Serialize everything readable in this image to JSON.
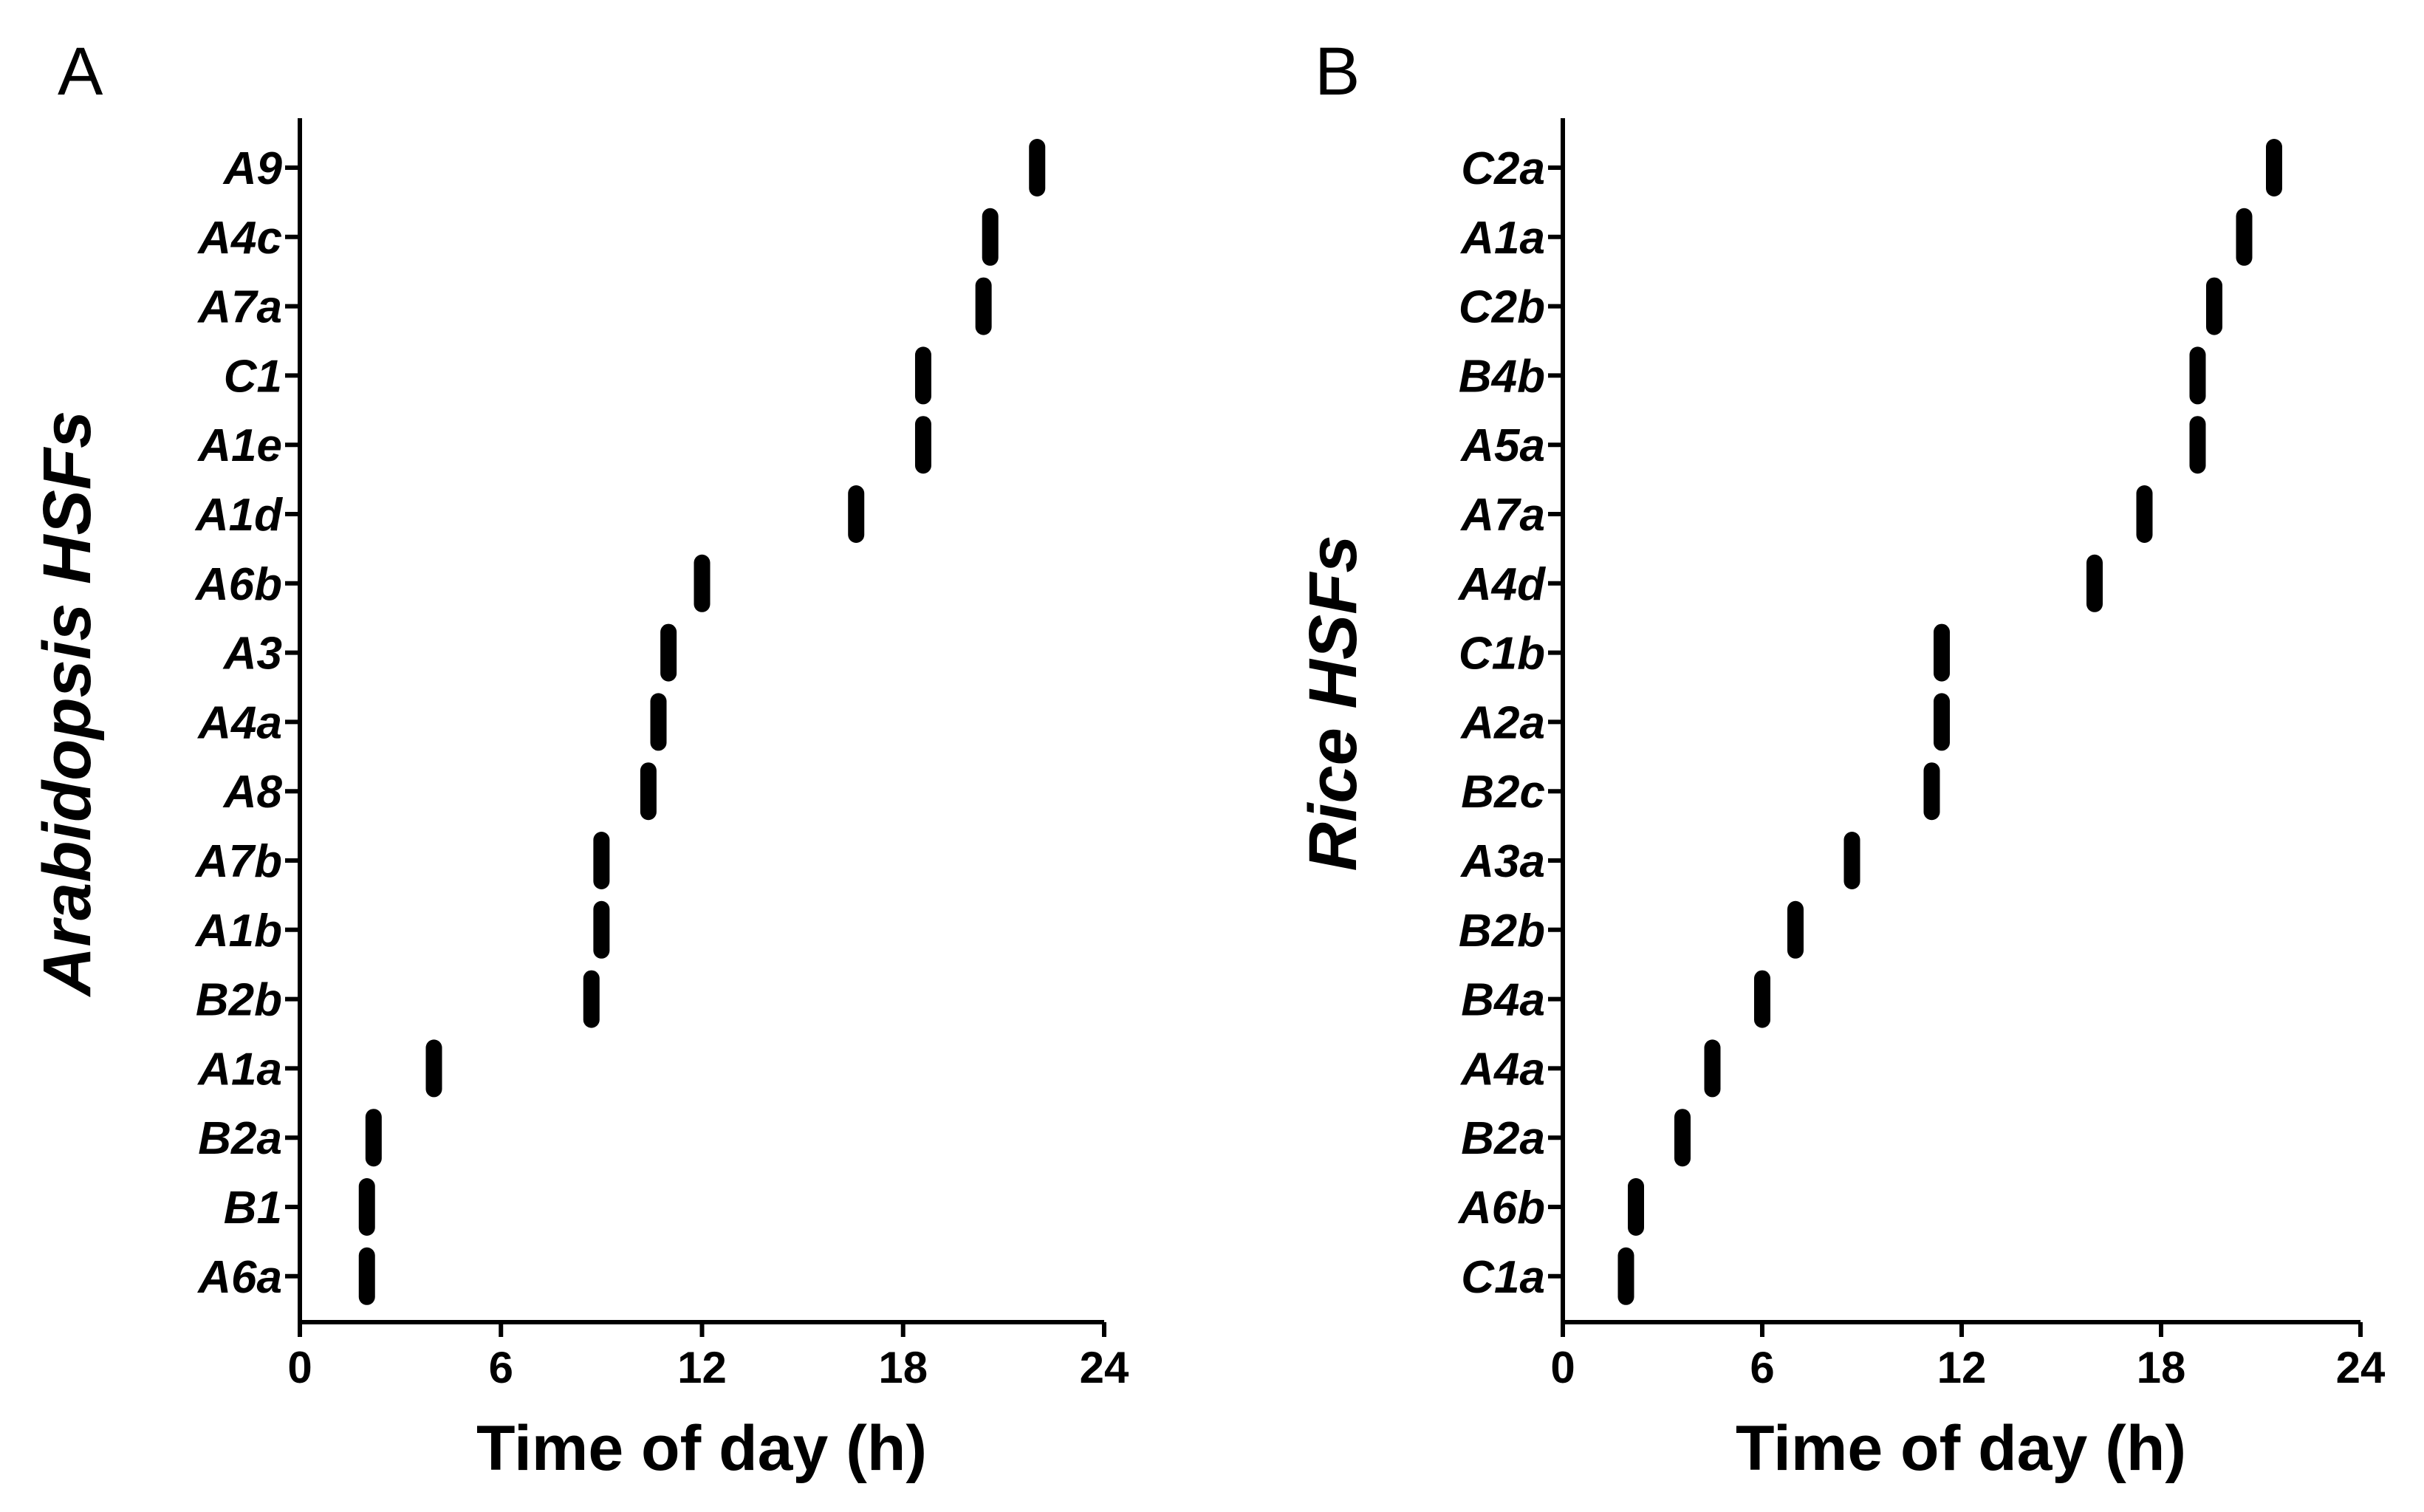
{
  "chart_data": [
    {
      "type": "scatter",
      "panel_label": "A",
      "title": "",
      "xlabel": "Time of day (h)",
      "ylabel": "Arabidopsis HSFs",
      "xlim": [
        0,
        24
      ],
      "xticks": [
        "0",
        "6",
        "12",
        "18",
        "24"
      ],
      "grid": false,
      "categories": [
        "A9",
        "A4c",
        "A7a",
        "C1",
        "A1e",
        "A1d",
        "A6b",
        "A3",
        "A4a",
        "A8",
        "A7b",
        "A1b",
        "B2b",
        "A1a",
        "B2a",
        "B1",
        "A6a"
      ],
      "values": [
        22.0,
        20.6,
        20.4,
        18.6,
        18.6,
        16.6,
        12.0,
        11.0,
        10.7,
        10.4,
        9.0,
        9.0,
        8.7,
        4.0,
        2.2,
        2.0,
        2.0
      ]
    },
    {
      "type": "scatter",
      "panel_label": "B",
      "title": "",
      "xlabel": "Time of day (h)",
      "ylabel": "Rice HSFs",
      "xlim": [
        0,
        24
      ],
      "xticks": [
        "0",
        "6",
        "12",
        "18",
        "24"
      ],
      "grid": false,
      "categories": [
        "C2a",
        "A1a",
        "C2b",
        "B4b",
        "A5a",
        "A7a",
        "A4d",
        "C1b",
        "A2a",
        "B2c",
        "A3a",
        "B2b",
        "B4a",
        "A4a",
        "B2a",
        "A6b",
        "C1a"
      ],
      "values": [
        21.4,
        20.5,
        19.6,
        19.1,
        19.1,
        17.5,
        16.0,
        11.4,
        11.4,
        11.1,
        8.7,
        7.0,
        6.0,
        4.5,
        3.6,
        2.2,
        1.9
      ]
    }
  ]
}
